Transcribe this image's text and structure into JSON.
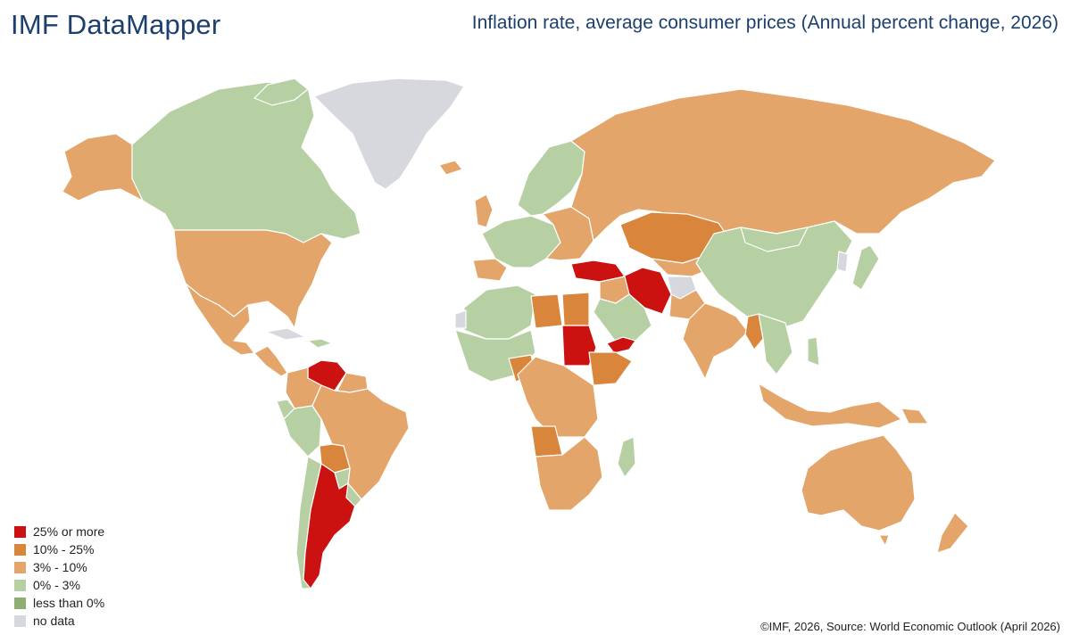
{
  "brand": "IMF DataMapper",
  "map_title": "Inflation rate, average consumer prices (Annual percent change, 2026)",
  "credit": "©IMF, 2026, Source: World Economic Outlook (April 2026)",
  "colors": {
    "high": "#cc1111",
    "mid": "#d9853b",
    "low": "#e3a56a",
    "stable": "#b7d0a3",
    "negative": "#8fae73",
    "nodata": "#d6d8de",
    "border": "#ffffff"
  },
  "legend": [
    {
      "label": "25% or more",
      "color": "#cc1111"
    },
    {
      "label": "10% - 25%",
      "color": "#d9853b"
    },
    {
      "label": "3% - 10%",
      "color": "#e3a56a"
    },
    {
      "label": "0% - 3%",
      "color": "#b7d0a3"
    },
    {
      "label": "less than 0%",
      "color": "#8fae73"
    },
    {
      "label": "no data",
      "color": "#d6d8de"
    }
  ]
}
